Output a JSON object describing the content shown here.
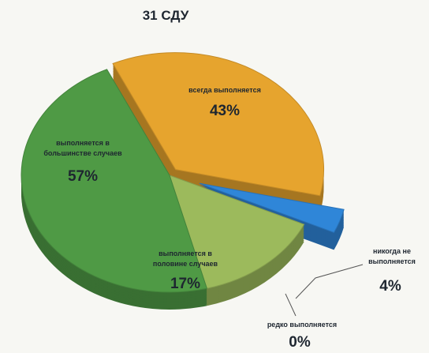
{
  "chart_data": {
    "type": "pie",
    "title": "31 СДУ",
    "categories": [
      "всегда выполняется",
      "никогда не выполняется",
      "редко выполняется",
      "выполняется в половине случаев",
      "выполняется в большинстве случаев"
    ],
    "values": [
      43,
      4,
      0,
      17,
      57
    ],
    "value_labels": [
      "43%",
      "4%",
      "0%",
      "17%",
      "57%"
    ],
    "colors": [
      "#e6a42e",
      "#2f86d8",
      "#7a1a22",
      "#9cba5c",
      "#4f9a45"
    ]
  }
}
